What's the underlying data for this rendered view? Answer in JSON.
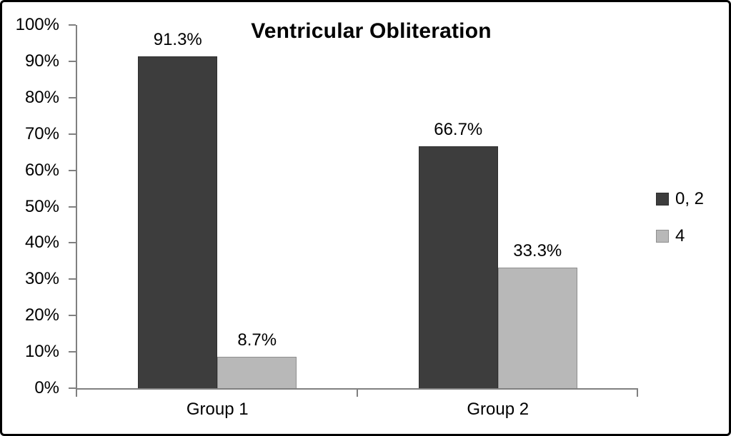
{
  "figure": {
    "background_color": "#ffffff",
    "frame_border_color": "#000000"
  },
  "chart_data": {
    "type": "bar",
    "title": "Ventricular Obliteration",
    "categories": [
      "Group 1",
      "Group 2"
    ],
    "series": [
      {
        "name": "0, 2",
        "values": [
          91.3,
          66.7
        ],
        "labels": [
          "91.3%",
          "66.7%"
        ],
        "fill": "#3d3d3d",
        "border": "#2e2e2e"
      },
      {
        "name": "4",
        "values": [
          8.7,
          33.3
        ],
        "labels": [
          "8.7%",
          "33.3%"
        ],
        "fill": "#b8b8b8",
        "border": "#8f8f8f"
      }
    ],
    "y_axis": {
      "min": 0,
      "max": 100,
      "step": 10,
      "tick_labels": [
        "100%",
        "90%",
        "80%",
        "70%",
        "60%",
        "50%",
        "40%",
        "30%",
        "20%",
        "10%",
        "0%"
      ]
    },
    "x_axis": {
      "labels": [
        "Group 1",
        "Group 2"
      ]
    },
    "legend": {
      "position": "right"
    },
    "grid": false,
    "axis_color": "#808080",
    "text_color": "#000000"
  }
}
